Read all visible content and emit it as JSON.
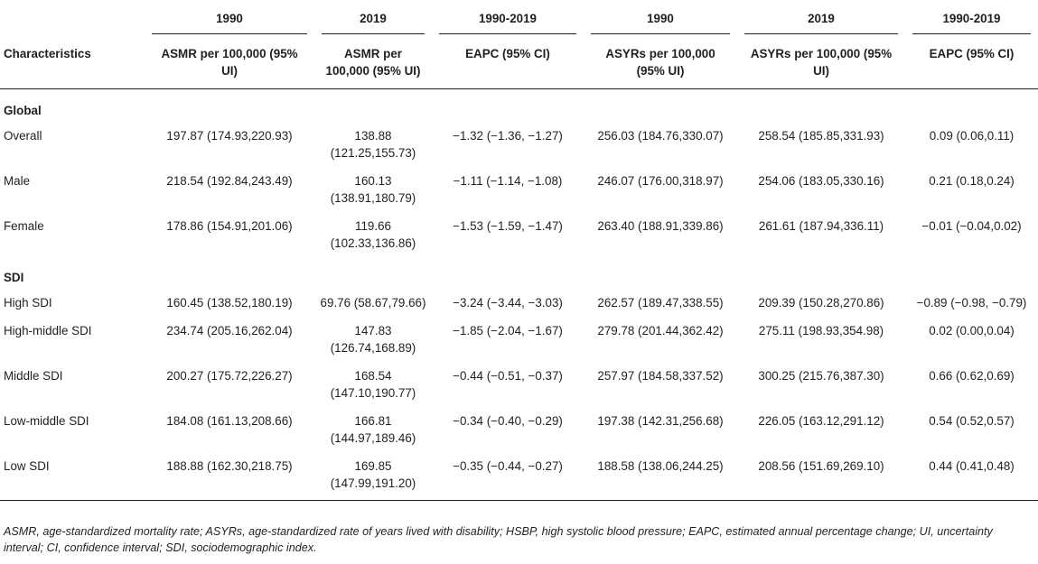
{
  "header_years": [
    "1990",
    "2019",
    "1990-2019",
    "1990",
    "2019",
    "1990-2019"
  ],
  "header_cols": [
    "Characteristics",
    "ASMR per 100,000 (95% UI)",
    "ASMR per 100,000 (95% UI)",
    "EAPC (95% CI)",
    "ASYRs per 100,000 (95% UI)",
    "ASYRs per 100,000 (95% UI)",
    "EAPC (95% CI)"
  ],
  "sections": [
    {
      "title": "Global",
      "rows": [
        {
          "label": "Overall",
          "cells": [
            "197.87 (174.93,220.93)",
            "138.88 (121.25,155.73)",
            "−1.32 (−1.36, −1.27)",
            "256.03 (184.76,330.07)",
            "258.54 (185.85,331.93)",
            "0.09 (0.06,0.11)"
          ]
        },
        {
          "label": "Male",
          "cells": [
            "218.54 (192.84,243.49)",
            "160.13 (138.91,180.79)",
            "−1.11 (−1.14, −1.08)",
            "246.07 (176.00,318.97)",
            "254.06 (183.05,330.16)",
            "0.21 (0.18,0.24)"
          ]
        },
        {
          "label": "Female",
          "cells": [
            "178.86 (154.91,201.06)",
            "119.66 (102.33,136.86)",
            "−1.53 (−1.59, −1.47)",
            "263.40 (188.91,339.86)",
            "261.61 (187.94,336.11)",
            "−0.01 (−0.04,0.02)"
          ]
        }
      ]
    },
    {
      "title": "SDI",
      "rows": [
        {
          "label": "High SDI",
          "cells": [
            "160.45 (138.52,180.19)",
            "69.76 (58.67,79.66)",
            "−3.24 (−3.44, −3.03)",
            "262.57 (189.47,338.55)",
            "209.39 (150.28,270.86)",
            "−0.89 (−0.98, −0.79)"
          ]
        },
        {
          "label": "High-middle SDI",
          "cells": [
            "234.74 (205.16,262.04)",
            "147.83 (126.74,168.89)",
            "−1.85 (−2.04, −1.67)",
            "279.78 (201.44,362.42)",
            "275.11 (198.93,354.98)",
            "0.02 (0.00,0.04)"
          ]
        },
        {
          "label": "Middle SDI",
          "cells": [
            "200.27 (175.72,226.27)",
            "168.54 (147.10,190.77)",
            "−0.44 (−0.51, −0.37)",
            "257.97 (184.58,337.52)",
            "300.25 (215.76,387.30)",
            "0.66 (0.62,0.69)"
          ]
        },
        {
          "label": "Low-middle SDI",
          "cells": [
            "184.08 (161.13,208.66)",
            "166.81 (144.97,189.46)",
            "−0.34 (−0.40, −0.29)",
            "197.38 (142.31,256.68)",
            "226.05 (163.12,291.12)",
            "0.54 (0.52,0.57)"
          ]
        },
        {
          "label": "Low SDI",
          "cells": [
            "188.88 (162.30,218.75)",
            "169.85 (147.99,191.20)",
            "−0.35 (−0.44, −0.27)",
            "188.58 (138.06,244.25)",
            "208.56 (151.69,269.10)",
            "0.44 (0.41,0.48)"
          ]
        }
      ]
    }
  ],
  "footnote": "ASMR, age-standardized mortality rate; ASYRs, age-standardized rate of years lived with disability; HSBP, high systolic blood pressure; EAPC, estimated annual percentage change; UI, uncertainty interval; CI, confidence interval; SDI, sociodemographic index."
}
